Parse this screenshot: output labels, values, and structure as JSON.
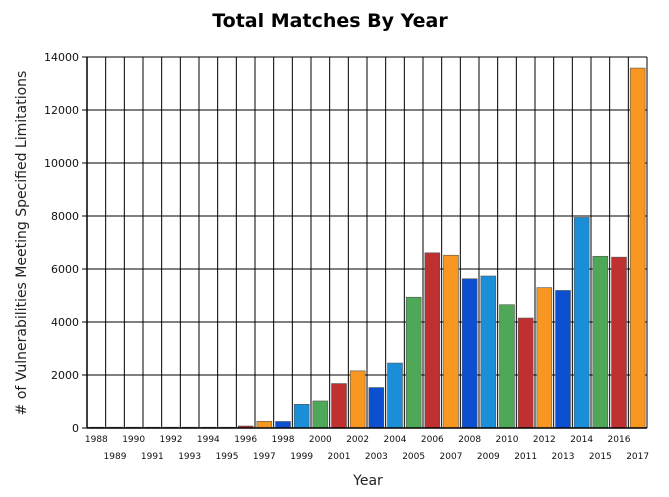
{
  "chart_data": {
    "type": "bar",
    "title": "Total Matches By Year",
    "xlabel": "Year",
    "ylabel": "# of Vulnerabilities Meeting Specified Limitations",
    "ylim": [
      0,
      14000
    ],
    "yticks": [
      0,
      2000,
      4000,
      6000,
      8000,
      10000,
      12000,
      14000
    ],
    "grid": true,
    "categories": [
      "1988",
      "1989",
      "1990",
      "1991",
      "1992",
      "1993",
      "1994",
      "1995",
      "1996",
      "1997",
      "1998",
      "1999",
      "2000",
      "2001",
      "2002",
      "2003",
      "2004",
      "2005",
      "2006",
      "2007",
      "2008",
      "2009",
      "2010",
      "2011",
      "2012",
      "2013",
      "2014",
      "2015",
      "2016",
      "2017"
    ],
    "values": [
      2,
      3,
      11,
      15,
      13,
      13,
      25,
      25,
      75,
      252,
      246,
      894,
      1020,
      1677,
      2156,
      1527,
      2451,
      4935,
      6610,
      6520,
      5632,
      5736,
      4652,
      4150,
      5297,
      5191,
      7946,
      6480,
      6447,
      13582
    ],
    "colors": [
      "#0d4fd1",
      "#1a8fd8",
      "#4fa857",
      "#bf3030",
      "#f79620"
    ]
  }
}
